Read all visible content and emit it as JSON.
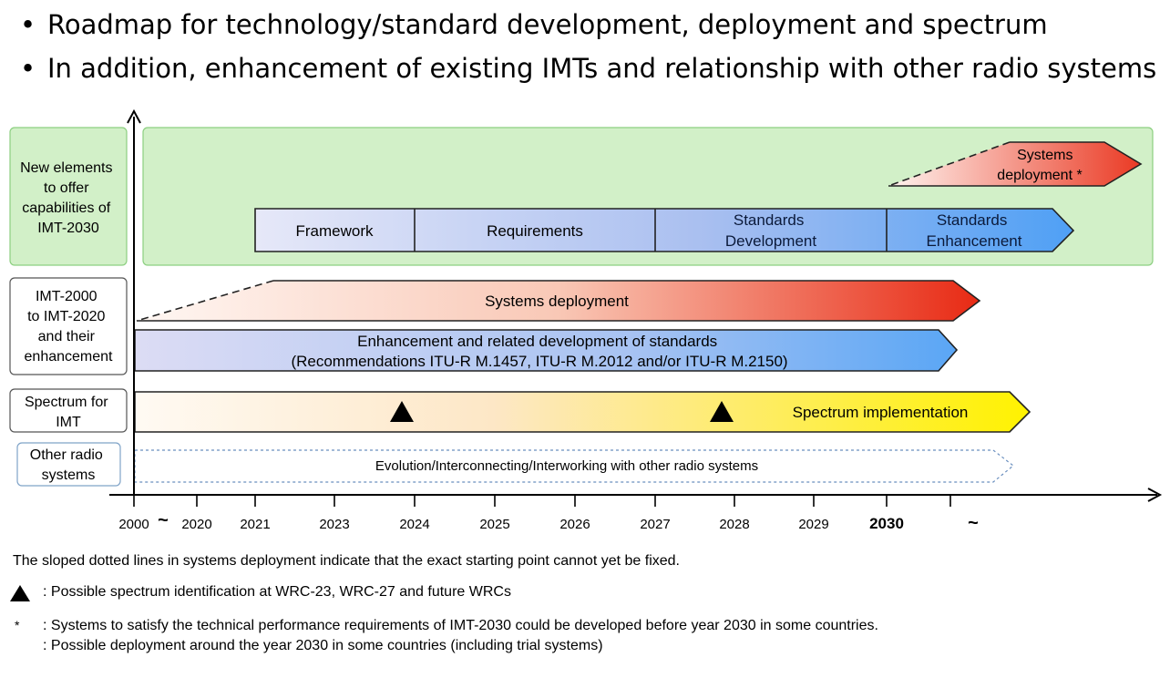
{
  "bullets": [
    "Roadmap for technology/standard development, deployment and spectrum",
    "In addition, enhancement of existing IMTs and relationship with other radio systems"
  ],
  "bullet_marker": "•",
  "rows": {
    "new_elements": [
      "New elements",
      "to offer",
      "capabilities of",
      "IMT-2030"
    ],
    "imt2000": [
      "IMT-2000",
      "to IMT-2020",
      "and their",
      "enhancement"
    ],
    "spectrum": [
      "Spectrum for",
      "IMT"
    ],
    "other_radio": [
      "Other radio",
      "systems"
    ]
  },
  "phases": {
    "framework": "Framework",
    "requirements": "Requirements",
    "standards_development": [
      "Standards",
      "Development"
    ],
    "standards_enhancement": [
      "Standards",
      "Enhancement"
    ],
    "systems_deployment_2030": [
      "Systems",
      "deployment *"
    ]
  },
  "bars": {
    "systems_deployment": "Systems deployment",
    "enhancement": [
      "Enhancement and related development of standards",
      "(Recommendations ITU-R M.1457, ITU-R M.2012 and/or ITU-R M.2150)"
    ],
    "spectrum_implementation": "Spectrum implementation",
    "evolution": "Evolution/Interconnecting/Interworking with other radio systems"
  },
  "axis": {
    "ticks": [
      "2000",
      "2020",
      "2021",
      "2023",
      "2024",
      "2025",
      "2026",
      "2027",
      "2028",
      "2029",
      "2030"
    ],
    "tilde": "~"
  },
  "notes": {
    "sloped": "The sloped dotted lines in systems deployment indicate that the exact starting point cannot yet be fixed.",
    "triangle": ": Possible spectrum identification at WRC-23, WRC-27 and future WRCs",
    "star_marker": "*",
    "star_line1": ": Systems to satisfy the technical performance requirements of IMT-2030 could be developed before year 2030 in some countries.",
    "star_line2": ": Possible deployment around the year 2030 in some countries (including trial systems)"
  },
  "colors": {
    "green": "#d2f0c8",
    "green_border": "#8ccf80",
    "red": "#e8301e",
    "blue": "#5aa6f5",
    "yellow": "#fff000"
  }
}
